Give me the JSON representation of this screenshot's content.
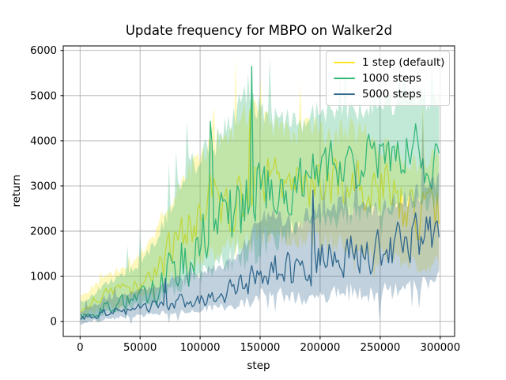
{
  "chart_data": {
    "type": "line",
    "title": "Update frequency for MBPO on Walker2d",
    "xlabel": "step",
    "ylabel": "return",
    "legend_position": "upper right",
    "grid": true,
    "grid_color": "#b0b0b0",
    "spine_color": "#000000",
    "band_opacity": 0.3,
    "xlim": [
      -14000,
      312000
    ],
    "ylim": [
      -330,
      6100
    ],
    "x_ticks": [
      0,
      50000,
      100000,
      150000,
      200000,
      250000,
      300000
    ],
    "y_ticks": [
      0,
      1000,
      2000,
      3000,
      4000,
      5000,
      6000
    ],
    "x": [
      0,
      10000,
      20000,
      30000,
      40000,
      50000,
      60000,
      70000,
      80000,
      90000,
      100000,
      110000,
      120000,
      130000,
      140000,
      150000,
      160000,
      170000,
      180000,
      190000,
      200000,
      210000,
      220000,
      230000,
      240000,
      250000,
      260000,
      270000,
      280000,
      290000,
      300000
    ],
    "series": [
      {
        "name": "1 step (default)",
        "color": "#fde725",
        "mean": [
          300,
          420,
          520,
          650,
          750,
          850,
          1000,
          1300,
          1700,
          2100,
          2300,
          2500,
          2600,
          2700,
          2900,
          3000,
          3000,
          3100,
          3000,
          3100,
          3000,
          2950,
          3100,
          3000,
          2950,
          2900,
          2700,
          2500,
          2400,
          2500,
          2400
        ],
        "band_low": [
          120,
          220,
          300,
          380,
          450,
          520,
          620,
          800,
          1050,
          1250,
          1350,
          1450,
          1550,
          1650,
          1800,
          1900,
          1850,
          1900,
          1800,
          1850,
          1800,
          1750,
          1800,
          1700,
          1500,
          1400,
          1300,
          1250,
          1200,
          1250,
          1200
        ],
        "band_high": [
          550,
          750,
          950,
          1100,
          1250,
          1450,
          1800,
          2400,
          2900,
          3300,
          3600,
          4100,
          4000,
          4200,
          4700,
          4500,
          4300,
          4200,
          4100,
          4300,
          4200,
          4100,
          4300,
          4200,
          4100,
          4000,
          3800,
          3600,
          3400,
          3600,
          3500
        ]
      },
      {
        "name": "1000 steps",
        "color": "#35b779",
        "mean": [
          150,
          200,
          300,
          380,
          450,
          550,
          650,
          900,
          1200,
          1500,
          1800,
          2000,
          2100,
          2400,
          2700,
          2900,
          3000,
          3100,
          3100,
          3200,
          3200,
          3300,
          3300,
          3400,
          3500,
          3600,
          3500,
          3600,
          3700,
          3600,
          3700
        ],
        "band_low": [
          50,
          100,
          180,
          250,
          300,
          350,
          420,
          550,
          750,
          900,
          1050,
          1200,
          1300,
          1450,
          1550,
          1600,
          1750,
          1900,
          2000,
          2100,
          2200,
          2300,
          2300,
          2400,
          2500,
          2600,
          2500,
          2600,
          2700,
          2600,
          2700
        ],
        "band_high": [
          400,
          600,
          800,
          950,
          1100,
          1300,
          1600,
          2200,
          2800,
          3400,
          3600,
          3800,
          4200,
          4600,
          5200,
          4700,
          4400,
          4500,
          4400,
          4500,
          4600,
          4700,
          4600,
          4700,
          4800,
          4900,
          4800,
          5000,
          5100,
          4900,
          5000
        ]
      },
      {
        "name": "5000 steps",
        "color": "#31688e",
        "mean": [
          50,
          120,
          180,
          220,
          260,
          300,
          350,
          400,
          450,
          480,
          500,
          550,
          600,
          700,
          850,
          1200,
          1300,
          1250,
          1100,
          1300,
          1300,
          1400,
          1500,
          1450,
          1400,
          1500,
          1600,
          1700,
          1800,
          1850,
          2100
        ],
        "band_low": [
          -60,
          0,
          50,
          80,
          100,
          120,
          150,
          180,
          220,
          250,
          270,
          300,
          330,
          380,
          420,
          550,
          600,
          550,
          480,
          550,
          550,
          600,
          650,
          650,
          600,
          650,
          700,
          750,
          800,
          850,
          950
        ],
        "band_high": [
          200,
          350,
          450,
          520,
          600,
          680,
          750,
          850,
          950,
          1000,
          1050,
          1150,
          1250,
          1450,
          1800,
          2300,
          2400,
          2300,
          2100,
          2400,
          2400,
          2500,
          2600,
          2500,
          2400,
          2500,
          2600,
          2700,
          2800,
          2900,
          3100
        ]
      }
    ]
  }
}
